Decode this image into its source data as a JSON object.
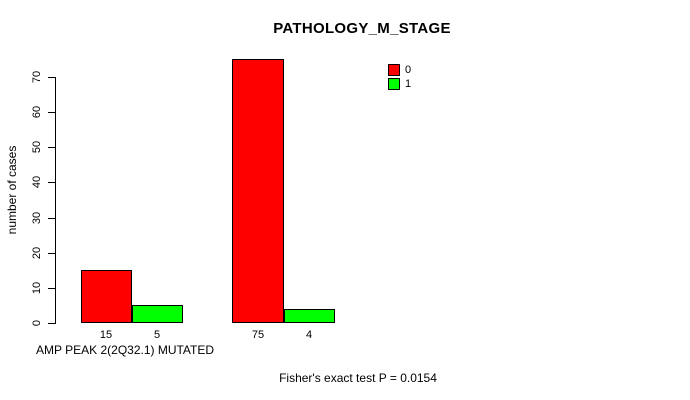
{
  "chart_data": {
    "type": "bar",
    "title": "PATHOLOGY_M_STAGE",
    "ylabel": "number of cases",
    "xlabel": "AMP PEAK 2(2Q32.1) MUTATED",
    "ylim": [
      0,
      75
    ],
    "yticks": [
      0,
      10,
      20,
      30,
      40,
      50,
      60,
      70
    ],
    "grid": false,
    "legend_position": "top-right",
    "series": [
      {
        "name": "0",
        "color": "#ff0000",
        "values": [
          15,
          75
        ]
      },
      {
        "name": "1",
        "color": "#00ff00",
        "values": [
          5,
          4
        ]
      }
    ],
    "annotation": "Fisher's exact test P = 0.0154"
  }
}
